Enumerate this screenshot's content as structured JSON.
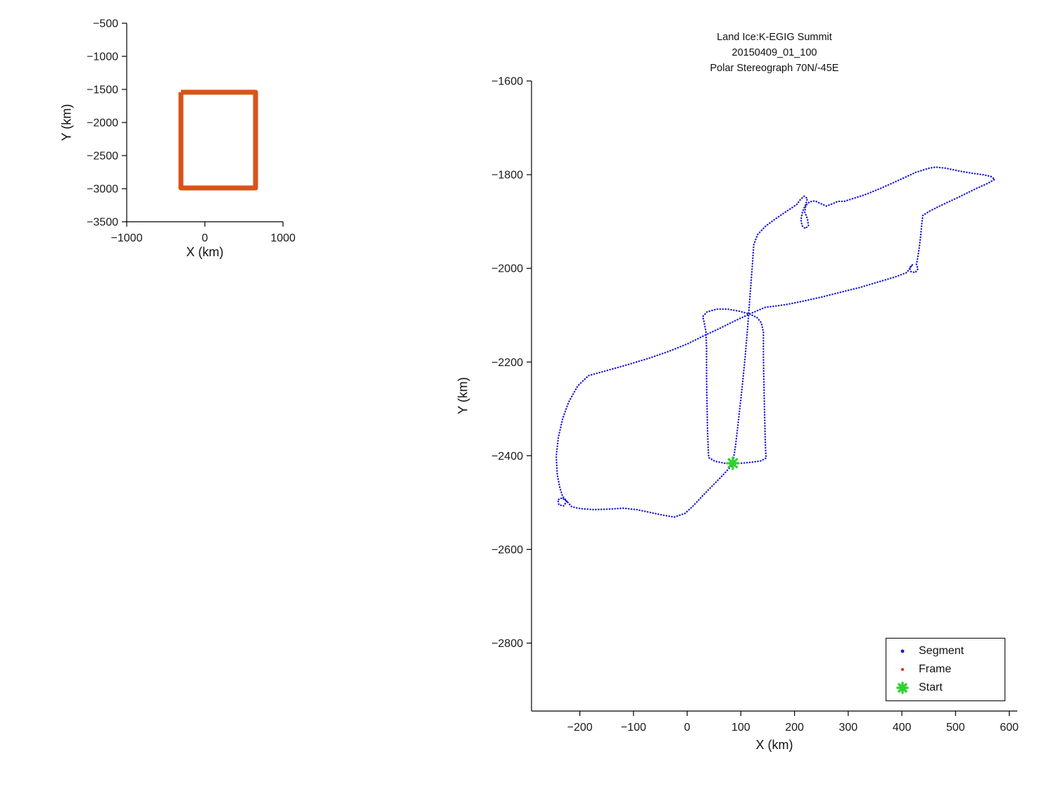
{
  "figure": {
    "background": "#ffffff"
  },
  "chart_data": [
    {
      "type": "line",
      "name": "coverage-overview",
      "title": "",
      "xlabel": "X (km)",
      "ylabel": "Y (km)",
      "xlim": [
        -1000,
        1000
      ],
      "ylim": [
        -3500,
        -500
      ],
      "xticks": [
        -1000,
        0,
        1000
      ],
      "yticks": [
        -500,
        -1000,
        -1500,
        -2000,
        -2500,
        -3000,
        -3500
      ],
      "grid": false,
      "series": [
        {
          "name": "coverage-box",
          "type": "polyline",
          "color": "#D95319",
          "width": 7,
          "points": [
            [
              -306,
              -1543
            ],
            [
              649,
              -1543
            ],
            [
              649,
              -2989
            ],
            [
              -306,
              -2989
            ],
            [
              -306,
              -1543
            ]
          ]
        }
      ]
    },
    {
      "type": "scatter",
      "name": "flight-track",
      "title_lines": [
        "Land Ice:K-EGIG Summit",
        "20150409_01_100",
        "Polar Stereograph 70N/-45E"
      ],
      "xlabel": "X (km)",
      "ylabel": "Y (km)",
      "xlim": [
        -290,
        615
      ],
      "ylim": [
        -2945,
        -1600
      ],
      "xticks": [
        -200,
        -100,
        0,
        100,
        200,
        300,
        400,
        500,
        600
      ],
      "yticks": [
        -2800,
        -2600,
        -2400,
        -2200,
        -2000,
        -1800,
        -1600
      ],
      "grid": false,
      "legend_position": "bottom-right",
      "legend": [
        {
          "label": "Segment",
          "color": "#1717D6",
          "marker": "dot"
        },
        {
          "label": "Frame",
          "color": "#ED2121",
          "marker": "dot"
        },
        {
          "label": "Start",
          "color": "#2ED12E",
          "marker": "asterisk"
        }
      ],
      "series": [
        {
          "name": "segment-track",
          "type": "dotted-line",
          "color": "#1717D6",
          "width": 2.3,
          "dash": "0.3 3.6",
          "points": [
            [
              85,
              -2416
            ],
            [
              90,
              -2380
            ],
            [
              96,
              -2320
            ],
            [
              102,
              -2258
            ],
            [
              108,
              -2190
            ],
            [
              113,
              -2120
            ],
            [
              118,
              -2044
            ],
            [
              122,
              -1985
            ],
            [
              124,
              -1950
            ],
            [
              131,
              -1928
            ],
            [
              146,
              -1910
            ],
            [
              166,
              -1893
            ],
            [
              188,
              -1876
            ],
            [
              204,
              -1864
            ],
            [
              211,
              -1853
            ],
            [
              218,
              -1846
            ],
            [
              224,
              -1851
            ],
            [
              221,
              -1863
            ],
            [
              215,
              -1879
            ],
            [
              212,
              -1896
            ],
            [
              214,
              -1909
            ],
            [
              220,
              -1915
            ],
            [
              226,
              -1909
            ],
            [
              224,
              -1894
            ],
            [
              219,
              -1880
            ],
            [
              221,
              -1866
            ],
            [
              228,
              -1858
            ],
            [
              238,
              -1856
            ],
            [
              249,
              -1862
            ],
            [
              259,
              -1867
            ],
            [
              269,
              -1863
            ],
            [
              281,
              -1857
            ],
            [
              293,
              -1857
            ],
            [
              306,
              -1852
            ],
            [
              331,
              -1843
            ],
            [
              361,
              -1829
            ],
            [
              396,
              -1811
            ],
            [
              426,
              -1795
            ],
            [
              451,
              -1786
            ],
            [
              463,
              -1784
            ],
            [
              481,
              -1786
            ],
            [
              506,
              -1792
            ],
            [
              531,
              -1797
            ],
            [
              551,
              -1800
            ],
            [
              566,
              -1804
            ],
            [
              573,
              -1810
            ],
            [
              561,
              -1818
            ],
            [
              536,
              -1831
            ],
            [
              506,
              -1848
            ],
            [
              476,
              -1864
            ],
            [
              453,
              -1877
            ],
            [
              439,
              -1887
            ],
            [
              437,
              -1906
            ],
            [
              435,
              -1931
            ],
            [
              432,
              -1959
            ],
            [
              429,
              -1981
            ],
            [
              427,
              -1991
            ],
            [
              430,
              -2001
            ],
            [
              425,
              -2009
            ],
            [
              417,
              -2007
            ],
            [
              414,
              -1999
            ],
            [
              420,
              -1992
            ],
            [
              409,
              -2009
            ],
            [
              386,
              -2019
            ],
            [
              356,
              -2029
            ],
            [
              321,
              -2041
            ],
            [
              286,
              -2051
            ],
            [
              251,
              -2061
            ],
            [
              216,
              -2070
            ],
            [
              186,
              -2077
            ],
            [
              161,
              -2081
            ],
            [
              146,
              -2083
            ],
            [
              121,
              -2095
            ],
            [
              91,
              -2111
            ],
            [
              61,
              -2128
            ],
            [
              31,
              -2144
            ],
            [
              1,
              -2161
            ],
            [
              -34,
              -2177
            ],
            [
              -69,
              -2191
            ],
            [
              -109,
              -2205
            ],
            [
              -149,
              -2218
            ],
            [
              -184,
              -2229
            ],
            [
              -204,
              -2251
            ],
            [
              -221,
              -2286
            ],
            [
              -232,
              -2321
            ],
            [
              -240,
              -2361
            ],
            [
              -244,
              -2401
            ],
            [
              -242,
              -2441
            ],
            [
              -237,
              -2469
            ],
            [
              -232,
              -2487
            ],
            [
              -224,
              -2497
            ],
            [
              -230,
              -2507
            ],
            [
              -239,
              -2505
            ],
            [
              -241,
              -2494
            ],
            [
              -233,
              -2490
            ],
            [
              -223,
              -2499
            ],
            [
              -215,
              -2509
            ],
            [
              -199,
              -2513
            ],
            [
              -174,
              -2515
            ],
            [
              -147,
              -2514
            ],
            [
              -119,
              -2512
            ],
            [
              -94,
              -2515
            ],
            [
              -69,
              -2521
            ],
            [
              -44,
              -2527
            ],
            [
              -24,
              -2531
            ],
            [
              -4,
              -2523
            ],
            [
              12,
              -2506
            ],
            [
              30,
              -2484
            ],
            [
              48,
              -2463
            ],
            [
              65,
              -2443
            ],
            [
              78,
              -2427
            ],
            [
              85,
              -2418
            ],
            [
              70,
              -2416
            ],
            [
              52,
              -2412
            ],
            [
              40,
              -2404
            ],
            [
              38,
              -2352
            ],
            [
              37,
              -2292
            ],
            [
              36,
              -2232
            ],
            [
              36,
              -2172
            ],
            [
              35,
              -2136
            ],
            [
              32,
              -2117
            ],
            [
              29,
              -2103
            ],
            [
              37,
              -2093
            ],
            [
              55,
              -2087
            ],
            [
              75,
              -2087
            ],
            [
              95,
              -2091
            ],
            [
              115,
              -2097
            ],
            [
              130,
              -2105
            ],
            [
              138,
              -2116
            ],
            [
              142,
              -2136
            ],
            [
              142,
              -2190
            ],
            [
              143,
              -2245
            ],
            [
              144,
              -2300
            ],
            [
              145,
              -2350
            ],
            [
              146,
              -2386
            ],
            [
              147,
              -2405
            ],
            [
              137,
              -2411
            ],
            [
              119,
              -2414
            ],
            [
              100,
              -2416
            ],
            [
              88,
              -2417
            ]
          ]
        },
        {
          "name": "start-marker",
          "type": "asterisk",
          "color": "#2ED12E",
          "size": 8,
          "points": [
            [
              85,
              -2416
            ]
          ]
        }
      ]
    }
  ]
}
